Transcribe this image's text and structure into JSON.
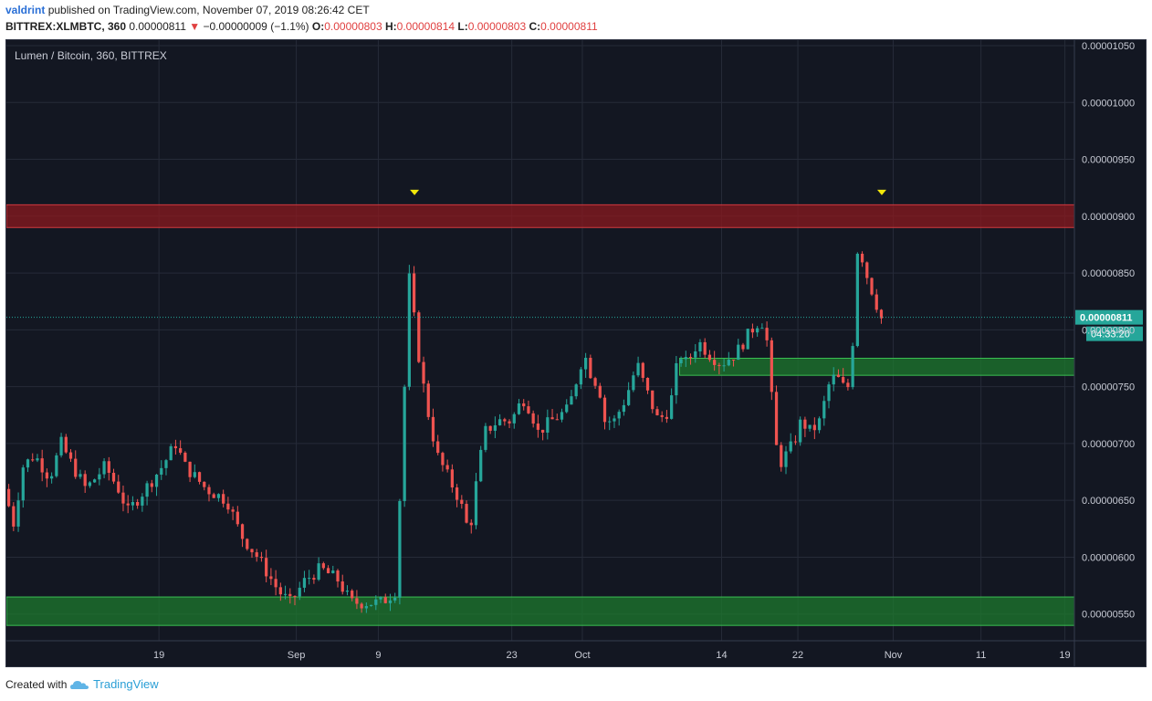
{
  "publication": {
    "author": "valdrint",
    "text": "published on TradingView.com, November 07, 2019 08:26:42 CET"
  },
  "ticker_line": {
    "symbol": "BITTREX:XLMBTC, 360",
    "price": "0.00000811",
    "change": "−0.00000009 (−1.1%)",
    "open_label": "O:",
    "open": "0.00000803",
    "high_label": "H:",
    "high": "0.00000814",
    "low_label": "L:",
    "low": "0.00000803",
    "close_label": "C:",
    "close": "0.00000811"
  },
  "footer": {
    "created_with": "Created with",
    "brand": "TradingView"
  },
  "colors": {
    "background": "#131722",
    "grid": "#262b38",
    "up": "#26a69a",
    "down": "#ef5350",
    "resistance_zone": "#8b1a1f",
    "support_zone": "#1e7a2e",
    "marker": "#f2e70a",
    "last_price": "#26a69a"
  },
  "chart_data": {
    "type": "candlestick",
    "title": "Lumen / Bitcoin, 360, BITTREX",
    "y_axis": {
      "range": [
        5.265e-06,
        1.0548e-05
      ],
      "ticks": [
        "0.00001050",
        "0.00001000",
        "0.00000950",
        "0.00000900",
        "0.00000850",
        "0.00000800",
        "0.00000750",
        "0.00000700",
        "0.00000650",
        "0.00000600",
        "0.00000550"
      ],
      "tick_values": [
        1.05e-05,
        1e-05,
        9.5e-06,
        9e-06,
        8.5e-06,
        8e-06,
        7.5e-06,
        7e-06,
        6.5e-06,
        6e-06,
        5.5e-06
      ]
    },
    "x_axis": {
      "range_days": [
        0,
        56
      ],
      "labels": [
        "19",
        "Sep",
        "9",
        "23",
        "Oct",
        "14",
        "22",
        "Nov",
        "11",
        "19"
      ],
      "label_days": [
        8,
        15.2,
        19.5,
        26.5,
        30.2,
        37.5,
        41.5,
        46.5,
        51.1,
        55.5
      ]
    },
    "last_price": {
      "value": 8.11e-06,
      "label": "0.00000811",
      "countdown": "04:33:20"
    },
    "zones": [
      {
        "name": "resistance",
        "low": 8.9e-06,
        "high": 9.1e-06,
        "from_day": 0,
        "to_day": 56
      },
      {
        "name": "support-mid",
        "low": 7.6e-06,
        "high": 7.75e-06,
        "from_day": 35.3,
        "to_day": 56
      },
      {
        "name": "support-low",
        "low": 5.4e-06,
        "high": 5.65e-06,
        "from_day": 0,
        "to_day": 56
      }
    ],
    "markers": [
      {
        "day": 21.4,
        "value": 9.2e-06
      },
      {
        "day": 45.9,
        "value": 9.2e-06
      }
    ],
    "ohlc_anchors": [
      [
        0,
        6.6e-06
      ],
      [
        0.5,
        6.3e-06
      ],
      [
        1.0,
        6.8e-06
      ],
      [
        1.6,
        6.9e-06
      ],
      [
        2.4,
        6.7e-06
      ],
      [
        3.0,
        7e-06
      ],
      [
        3.6,
        6.8e-06
      ],
      [
        4.3,
        6.6e-06
      ],
      [
        5.3,
        6.8e-06
      ],
      [
        6.0,
        6.6e-06
      ],
      [
        6.5,
        6.4e-06
      ],
      [
        7.4,
        6.6e-06
      ],
      [
        8.3,
        6.8e-06
      ],
      [
        9.0,
        7e-06
      ],
      [
        9.5,
        6.8e-06
      ],
      [
        10.6,
        6.6e-06
      ],
      [
        11.7,
        6.5e-06
      ],
      [
        12.4,
        6.2e-06
      ],
      [
        13.3,
        6e-06
      ],
      [
        14.4,
        5.7e-06
      ],
      [
        15.0,
        5.6e-06
      ],
      [
        15.8,
        5.8e-06
      ],
      [
        16.6,
        5.9e-06
      ],
      [
        17.5,
        5.8e-06
      ],
      [
        18.2,
        5.6e-06
      ],
      [
        18.9,
        5.6e-06
      ],
      [
        19.8,
        5.6e-06
      ],
      [
        20.5,
        5.7e-06
      ],
      [
        20.9,
        7e-06
      ],
      [
        21.1,
        8e-06
      ],
      [
        21.3,
        8.6e-06
      ],
      [
        21.5,
        8.1e-06
      ],
      [
        21.8,
        7.7e-06
      ],
      [
        22.2,
        7.3e-06
      ],
      [
        22.7,
        6.9e-06
      ],
      [
        23.3,
        6.7e-06
      ],
      [
        23.9,
        6.5e-06
      ],
      [
        24.4,
        6.2e-06
      ],
      [
        24.8,
        6.7e-06
      ],
      [
        25.2,
        7.1e-06
      ],
      [
        25.9,
        7.2e-06
      ],
      [
        26.6,
        7.2e-06
      ],
      [
        27.2,
        7.4e-06
      ],
      [
        27.6,
        7.3e-06
      ],
      [
        28.0,
        7.1e-06
      ],
      [
        28.7,
        7.2e-06
      ],
      [
        29.6,
        7.3e-06
      ],
      [
        30.4,
        7.8e-06
      ],
      [
        30.8,
        7.6e-06
      ],
      [
        31.2,
        7.5e-06
      ],
      [
        31.5,
        7.2e-06
      ],
      [
        32.0,
        7.2e-06
      ],
      [
        32.6,
        7.4e-06
      ],
      [
        33.2,
        7.7e-06
      ],
      [
        33.6,
        7.5e-06
      ],
      [
        34.3,
        7.2e-06
      ],
      [
        34.9,
        7.3e-06
      ],
      [
        35.4,
        7.8e-06
      ],
      [
        35.8,
        7.7e-06
      ],
      [
        36.4,
        7.9e-06
      ],
      [
        36.9,
        7.8e-06
      ],
      [
        37.6,
        7.7e-06
      ],
      [
        38.4,
        7.8e-06
      ],
      [
        39.2,
        8e-06
      ],
      [
        39.7,
        8.1e-06
      ],
      [
        40.0,
        7.9e-06
      ],
      [
        40.3,
        7.3e-06
      ],
      [
        40.6,
        6.8e-06
      ],
      [
        41.0,
        6.9e-06
      ],
      [
        41.4,
        7e-06
      ],
      [
        41.8,
        7.2e-06
      ],
      [
        42.3,
        7.1e-06
      ],
      [
        42.8,
        7.2e-06
      ],
      [
        43.2,
        7.5e-06
      ],
      [
        43.6,
        7.6e-06
      ],
      [
        44.0,
        7.5e-06
      ],
      [
        44.4,
        7.5e-06
      ],
      [
        44.7,
        8.7e-06
      ],
      [
        44.9,
        8.7e-06
      ],
      [
        45.2,
        8.5e-06
      ],
      [
        45.6,
        8.3e-06
      ],
      [
        46.0,
        8.1e-06
      ]
    ]
  }
}
